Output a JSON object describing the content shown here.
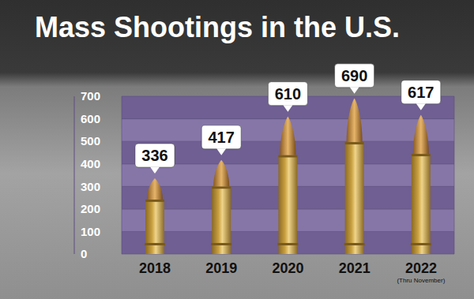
{
  "chart_data": {
    "type": "bar",
    "title": "Mass Shootings in the U.S.",
    "categories": [
      "2018",
      "2019",
      "2020",
      "2021",
      "2022"
    ],
    "values": [
      336,
      417,
      610,
      690,
      617
    ],
    "color": "#c9a040",
    "ylim": [
      0,
      700
    ],
    "yticks": [
      0,
      100,
      200,
      300,
      400,
      500,
      600,
      700
    ],
    "grid": true,
    "data_labels": true,
    "annotations": [
      {
        "category": "2022",
        "text": "(Thru November)"
      }
    ]
  }
}
